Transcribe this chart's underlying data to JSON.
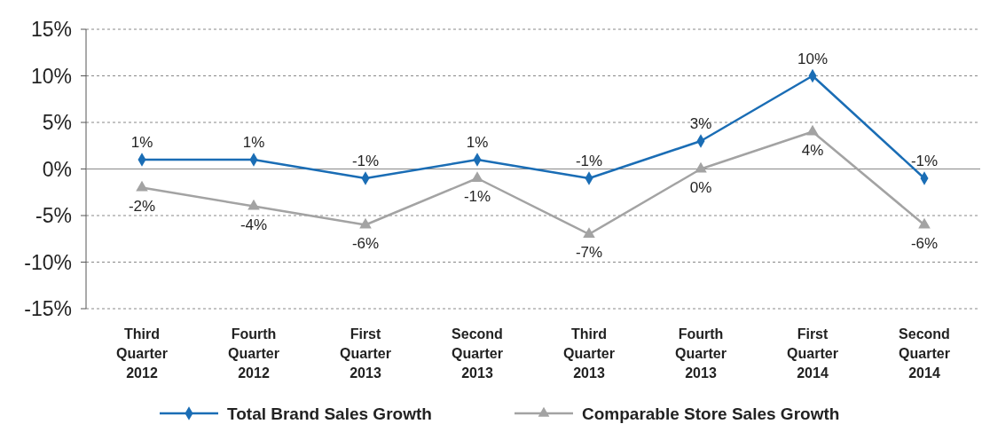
{
  "chart_data": {
    "type": "line",
    "categories": [
      "Third Quarter 2012",
      "Fourth Quarter 2012",
      "First Quarter 2013",
      "Second Quarter 2013",
      "Third Quarter 2013",
      "Fourth Quarter 2013",
      "First Quarter 2014",
      "Second Quarter 2014"
    ],
    "series": [
      {
        "name": "Total Brand Sales Growth",
        "color": "#1a6db5",
        "marker": "diamond",
        "values": [
          1,
          1,
          -1,
          1,
          -1,
          3,
          10,
          -1
        ],
        "value_labels": [
          "1%",
          "1%",
          "-1%",
          "1%",
          "-1%",
          "3%",
          "10%",
          "-1%"
        ]
      },
      {
        "name": "Comparable Store Sales Growth",
        "color": "#a3a3a3",
        "marker": "triangle",
        "values": [
          -2,
          -4,
          -6,
          -1,
          -7,
          0,
          4,
          -6
        ],
        "value_labels": [
          "-2%",
          "-4%",
          "-6%",
          "-1%",
          "-7%",
          "0%",
          "4%",
          "-6%"
        ]
      }
    ],
    "ylim": [
      -15,
      15
    ],
    "yticks": [
      {
        "value": -15,
        "label": "-15%"
      },
      {
        "value": -10,
        "label": "-10%"
      },
      {
        "value": -5,
        "label": "-5%"
      },
      {
        "value": 0,
        "label": "0%"
      },
      {
        "value": 5,
        "label": "5%"
      },
      {
        "value": 10,
        "label": "10%"
      },
      {
        "value": 15,
        "label": "15%"
      }
    ],
    "grid": "y",
    "legend": "bottom",
    "line_style": "solid"
  }
}
